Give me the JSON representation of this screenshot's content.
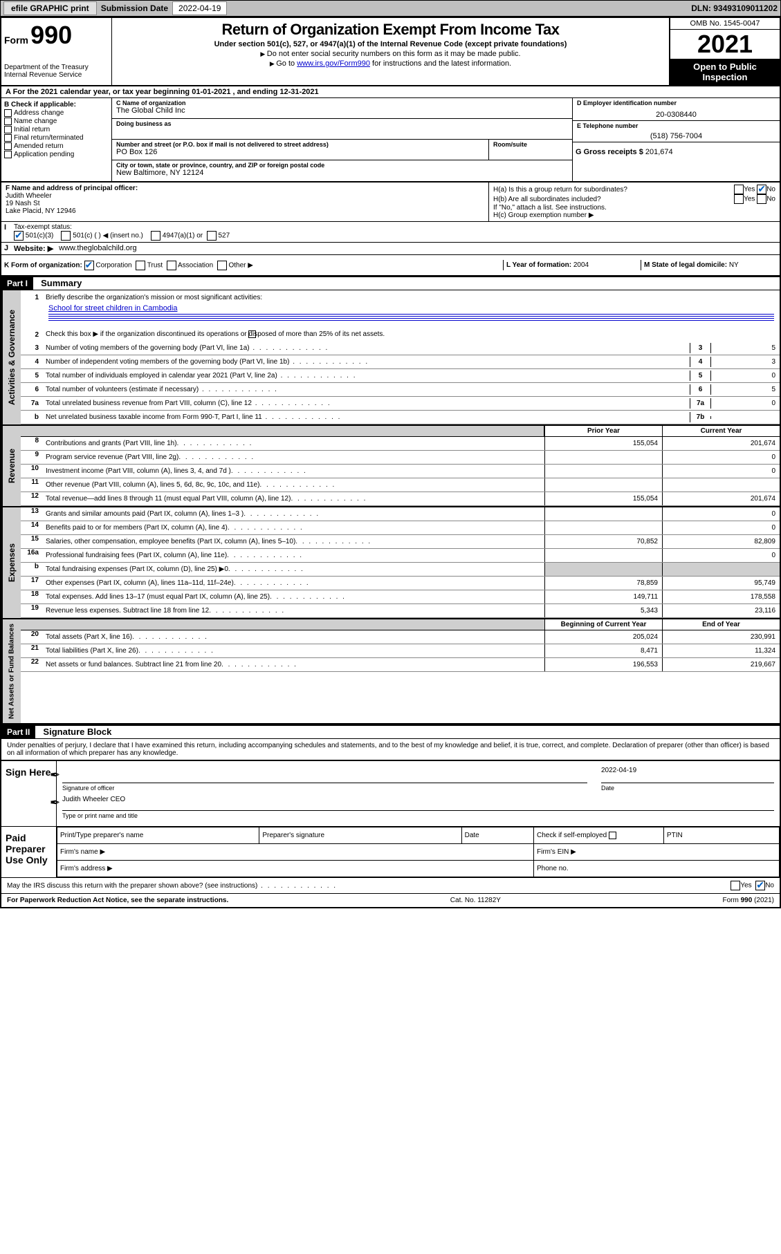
{
  "topbar": {
    "efile": "efile GRAPHIC print",
    "sublabel": "Submission Date",
    "subdate": "2022-04-19",
    "dln": "DLN: 93493109011202"
  },
  "header": {
    "form_word": "Form",
    "form_no": "990",
    "title": "Return of Organization Exempt From Income Tax",
    "sub1": "Under section 501(c), 527, or 4947(a)(1) of the Internal Revenue Code (except private foundations)",
    "sub2": "Do not enter social security numbers on this form as it may be made public.",
    "sub3a": "Go to ",
    "sub3link": "www.irs.gov/Form990",
    "sub3b": " for instructions and the latest information.",
    "dept": "Department of the Treasury\nInternal Revenue Service",
    "omb": "OMB No. 1545-0047",
    "year": "2021",
    "openpub": "Open to Public Inspection"
  },
  "line_a": {
    "prefix": "A For the 2021 calendar year, or tax year beginning ",
    "begin": "01-01-2021",
    "mid": " , and ending ",
    "end": "12-31-2021"
  },
  "box_b": {
    "label": "B Check if applicable:",
    "items": [
      "Address change",
      "Name change",
      "Initial return",
      "Final return/terminated",
      "Amended return",
      "Application pending"
    ]
  },
  "box_c": {
    "name_lbl": "C Name of organization",
    "name": "The Global Child Inc",
    "dba_lbl": "Doing business as",
    "dba": "",
    "addr_lbl": "Number and street (or P.O. box if mail is not delivered to street address)",
    "room_lbl": "Room/suite",
    "addr": "PO Box 126",
    "city_lbl": "City or town, state or province, country, and ZIP or foreign postal code",
    "city": "New Baltimore, NY  12124"
  },
  "box_d": {
    "lbl": "D Employer identification number",
    "val": "20-0308440"
  },
  "box_e": {
    "lbl": "E Telephone number",
    "val": "(518) 756-7004"
  },
  "box_g": {
    "lbl": "G Gross receipts $",
    "val": "201,674"
  },
  "box_f": {
    "lbl": "F  Name and address of principal officer:",
    "name": "Judith Wheeler",
    "addr1": "19 Nash St",
    "addr2": "Lake Placid, NY  12946"
  },
  "box_h": {
    "ha": "H(a)  Is this a group return for subordinates?",
    "hb": "H(b)  Are all subordinates included?",
    "hb_note": "If \"No,\" attach a list. See instructions.",
    "hc": "H(c)  Group exemption number ▶",
    "yes": "Yes",
    "no": "No"
  },
  "box_i": {
    "lbl": "Tax-exempt status:",
    "o1": "501(c)(3)",
    "o2": "501(c) (   ) ◀ (insert no.)",
    "o3": "4947(a)(1) or",
    "o4": "527"
  },
  "box_j": {
    "lbl": "Website: ▶",
    "val": "www.theglobalchild.org"
  },
  "box_k": {
    "lbl": "K Form of organization:",
    "o1": "Corporation",
    "o2": "Trust",
    "o3": "Association",
    "o4": "Other ▶"
  },
  "box_l": {
    "lbl": "L Year of formation:",
    "val": "2004"
  },
  "box_m": {
    "lbl": "M State of legal domicile:",
    "val": "NY"
  },
  "part1": {
    "num": "Part I",
    "title": "Summary"
  },
  "summary": {
    "q1a": "Briefly describe the organization's mission or most significant activities:",
    "q1b": "School for street children in Cambodia",
    "q2": "Check this box ▶        if the organization discontinued its operations or disposed of more than 25% of its net assets.",
    "lines": [
      {
        "n": "3",
        "t": "Number of voting members of the governing body (Part VI, line 1a)",
        "box": "3",
        "v": "5"
      },
      {
        "n": "4",
        "t": "Number of independent voting members of the governing body (Part VI, line 1b)",
        "box": "4",
        "v": "3"
      },
      {
        "n": "5",
        "t": "Total number of individuals employed in calendar year 2021 (Part V, line 2a)",
        "box": "5",
        "v": "0"
      },
      {
        "n": "6",
        "t": "Total number of volunteers (estimate if necessary)",
        "box": "6",
        "v": "5"
      },
      {
        "n": "7a",
        "t": "Total unrelated business revenue from Part VIII, column (C), line 12",
        "box": "7a",
        "v": "0"
      },
      {
        "n": "b",
        "t": "Net unrelated business taxable income from Form 990-T, Part I, line 11",
        "box": "7b",
        "v": ""
      }
    ],
    "col_prior": "Prior Year",
    "col_curr": "Current Year",
    "rev": [
      {
        "n": "8",
        "t": "Contributions and grants (Part VIII, line 1h)",
        "p": "155,054",
        "c": "201,674"
      },
      {
        "n": "9",
        "t": "Program service revenue (Part VIII, line 2g)",
        "p": "",
        "c": "0"
      },
      {
        "n": "10",
        "t": "Investment income (Part VIII, column (A), lines 3, 4, and 7d )",
        "p": "",
        "c": "0"
      },
      {
        "n": "11",
        "t": "Other revenue (Part VIII, column (A), lines 5, 6d, 8c, 9c, 10c, and 11e)",
        "p": "",
        "c": ""
      },
      {
        "n": "12",
        "t": "Total revenue—add lines 8 through 11 (must equal Part VIII, column (A), line 12)",
        "p": "155,054",
        "c": "201,674"
      }
    ],
    "exp": [
      {
        "n": "13",
        "t": "Grants and similar amounts paid (Part IX, column (A), lines 1–3 )",
        "p": "",
        "c": "0"
      },
      {
        "n": "14",
        "t": "Benefits paid to or for members (Part IX, column (A), line 4)",
        "p": "",
        "c": "0"
      },
      {
        "n": "15",
        "t": "Salaries, other compensation, employee benefits (Part IX, column (A), lines 5–10)",
        "p": "70,852",
        "c": "82,809"
      },
      {
        "n": "16a",
        "t": "Professional fundraising fees (Part IX, column (A), line 11e)",
        "p": "",
        "c": "0"
      },
      {
        "n": "b",
        "t": "Total fundraising expenses (Part IX, column (D), line 25) ▶0",
        "p": "GREY",
        "c": "GREY"
      },
      {
        "n": "17",
        "t": "Other expenses (Part IX, column (A), lines 11a–11d, 11f–24e)",
        "p": "78,859",
        "c": "95,749"
      },
      {
        "n": "18",
        "t": "Total expenses. Add lines 13–17 (must equal Part IX, column (A), line 25)",
        "p": "149,711",
        "c": "178,558"
      },
      {
        "n": "19",
        "t": "Revenue less expenses. Subtract line 18 from line 12",
        "p": "5,343",
        "c": "23,116"
      }
    ],
    "col_beg": "Beginning of Current Year",
    "col_end": "End of Year",
    "net": [
      {
        "n": "20",
        "t": "Total assets (Part X, line 16)",
        "p": "205,024",
        "c": "230,991"
      },
      {
        "n": "21",
        "t": "Total liabilities (Part X, line 26)",
        "p": "8,471",
        "c": "11,324"
      },
      {
        "n": "22",
        "t": "Net assets or fund balances. Subtract line 21 from line 20",
        "p": "196,553",
        "c": "219,667"
      }
    ]
  },
  "tabs": {
    "gov": "Activities & Governance",
    "rev": "Revenue",
    "exp": "Expenses",
    "net": "Net Assets or Fund Balances"
  },
  "part2": {
    "num": "Part II",
    "title": "Signature Block"
  },
  "sig": {
    "decl": "Under penalties of perjury, I declare that I have examined this return, including accompanying schedules and statements, and to the best of my knowledge and belief, it is true, correct, and complete. Declaration of preparer (other than officer) is based on all information of which preparer has any knowledge.",
    "here": "Sign Here",
    "sigoff": "Signature of officer",
    "date": "Date",
    "date_val": "2022-04-19",
    "name": "Judith Wheeler CEO",
    "name_lbl": "Type or print name and title",
    "paid": "Paid Preparer Use Only",
    "ptname": "Print/Type preparer's name",
    "psig": "Preparer's signature",
    "pdate": "Date",
    "pcheck": "Check        if self-employed",
    "ptin": "PTIN",
    "firm": "Firm's name  ▶",
    "ein": "Firm's EIN ▶",
    "faddr": "Firm's address ▶",
    "phone": "Phone no."
  },
  "footer": {
    "q": "May the IRS discuss this return with the preparer shown above? (see instructions)",
    "yes": "Yes",
    "no": "No",
    "pra": "For Paperwork Reduction Act Notice, see the separate instructions.",
    "cat": "Cat. No. 11282Y",
    "form": "Form 990 (2021)"
  }
}
